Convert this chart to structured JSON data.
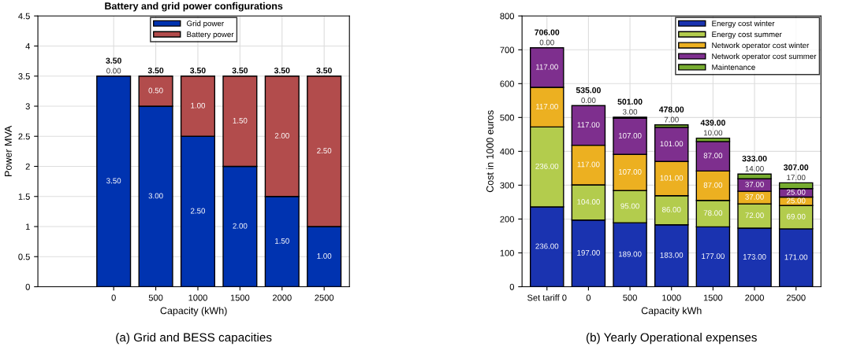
{
  "chart_data": [
    {
      "type": "bar",
      "title": "Battery and grid power configurations",
      "xlabel": "Capacity (kWh)",
      "ylabel": "Power MVA",
      "stacked": true,
      "categories": [
        "0",
        "500",
        "1000",
        "1500",
        "2000",
        "2500"
      ],
      "series": [
        {
          "name": "Grid power",
          "color": "#0033b0",
          "values": [
            3.5,
            3,
            2.5,
            2,
            1.5,
            1
          ],
          "value_labels": [
            "3.50",
            "3.00",
            "2.50",
            "2.00",
            "1.50",
            "1.00"
          ]
        },
        {
          "name": "Battery power",
          "color": "#b24c4c",
          "values": [
            0,
            0.5,
            1,
            1.5,
            2,
            2.5
          ],
          "value_labels": [
            "0.00",
            "0.50",
            "1.00",
            "1.50",
            "2.00",
            "2.50"
          ]
        }
      ],
      "totals": [
        "3.50",
        "3.50",
        "3.50",
        "3.50",
        "3.50",
        "3.50"
      ],
      "ylim": [
        0,
        4.5
      ],
      "yticks": [
        0,
        0.5,
        1,
        1.5,
        2,
        2.5,
        3,
        3.5,
        4,
        4.5
      ],
      "grid": true,
      "legend": "top",
      "annotations": [
        "(a) Grid and BESS capacities"
      ]
    },
    {
      "type": "bar",
      "xlabel": "Capacity kWh",
      "ylabel": "Cost in 1000 euros",
      "stacked": true,
      "categories": [
        "Set tariff 0",
        "0",
        "500",
        "1000",
        "1500",
        "2000",
        "2500"
      ],
      "series": [
        {
          "name": "Energy cost winter",
          "color": "#1a33b0",
          "values": [
            236,
            197,
            189,
            183,
            177,
            173,
            171
          ],
          "value_labels": [
            "236.00",
            "197.00",
            "189.00",
            "183.00",
            "177.00",
            "173.00",
            "171.00"
          ]
        },
        {
          "name": "Energy cost summer",
          "color": "#b3cc4d",
          "values": [
            236,
            104,
            95,
            86,
            78,
            72,
            69
          ],
          "value_labels": [
            "236.00",
            "104.00",
            "95.00",
            "86.00",
            "78.00",
            "72.00",
            "69.00"
          ]
        },
        {
          "name": "Network operator cost winter",
          "color": "#ecb021",
          "values": [
            117,
            117,
            107,
            101,
            87,
            37,
            25
          ],
          "value_labels": [
            "117.00",
            "117.00",
            "107.00",
            "101.00",
            "87.00",
            "37.00",
            "25.00"
          ]
        },
        {
          "name": "Network operator cost summer",
          "color": "#7e2f8e",
          "values": [
            117,
            117,
            107,
            101,
            87,
            37,
            25
          ],
          "value_labels": [
            "117.00",
            "117.00",
            "107.00",
            "101.00",
            "87.00",
            "37.00",
            "25.00"
          ]
        },
        {
          "name": "Maintenance",
          "color": "#77ac30",
          "values": [
            0,
            0,
            3,
            7,
            10,
            14,
            17
          ],
          "value_labels": [
            "0.00",
            "0.00",
            "3.00",
            "7.00",
            "10.00",
            "14.00",
            "17.00"
          ]
        }
      ],
      "totals": [
        "706.00",
        "535.00",
        "501.00",
        "478.00",
        "439.00",
        "333.00",
        "307.00"
      ],
      "ylim": [
        0,
        800
      ],
      "yticks": [
        0,
        100,
        200,
        300,
        400,
        500,
        600,
        700,
        800
      ],
      "grid": true,
      "legend": "top right",
      "annotations": [
        "(b) Yearly Operational expenses"
      ]
    }
  ]
}
